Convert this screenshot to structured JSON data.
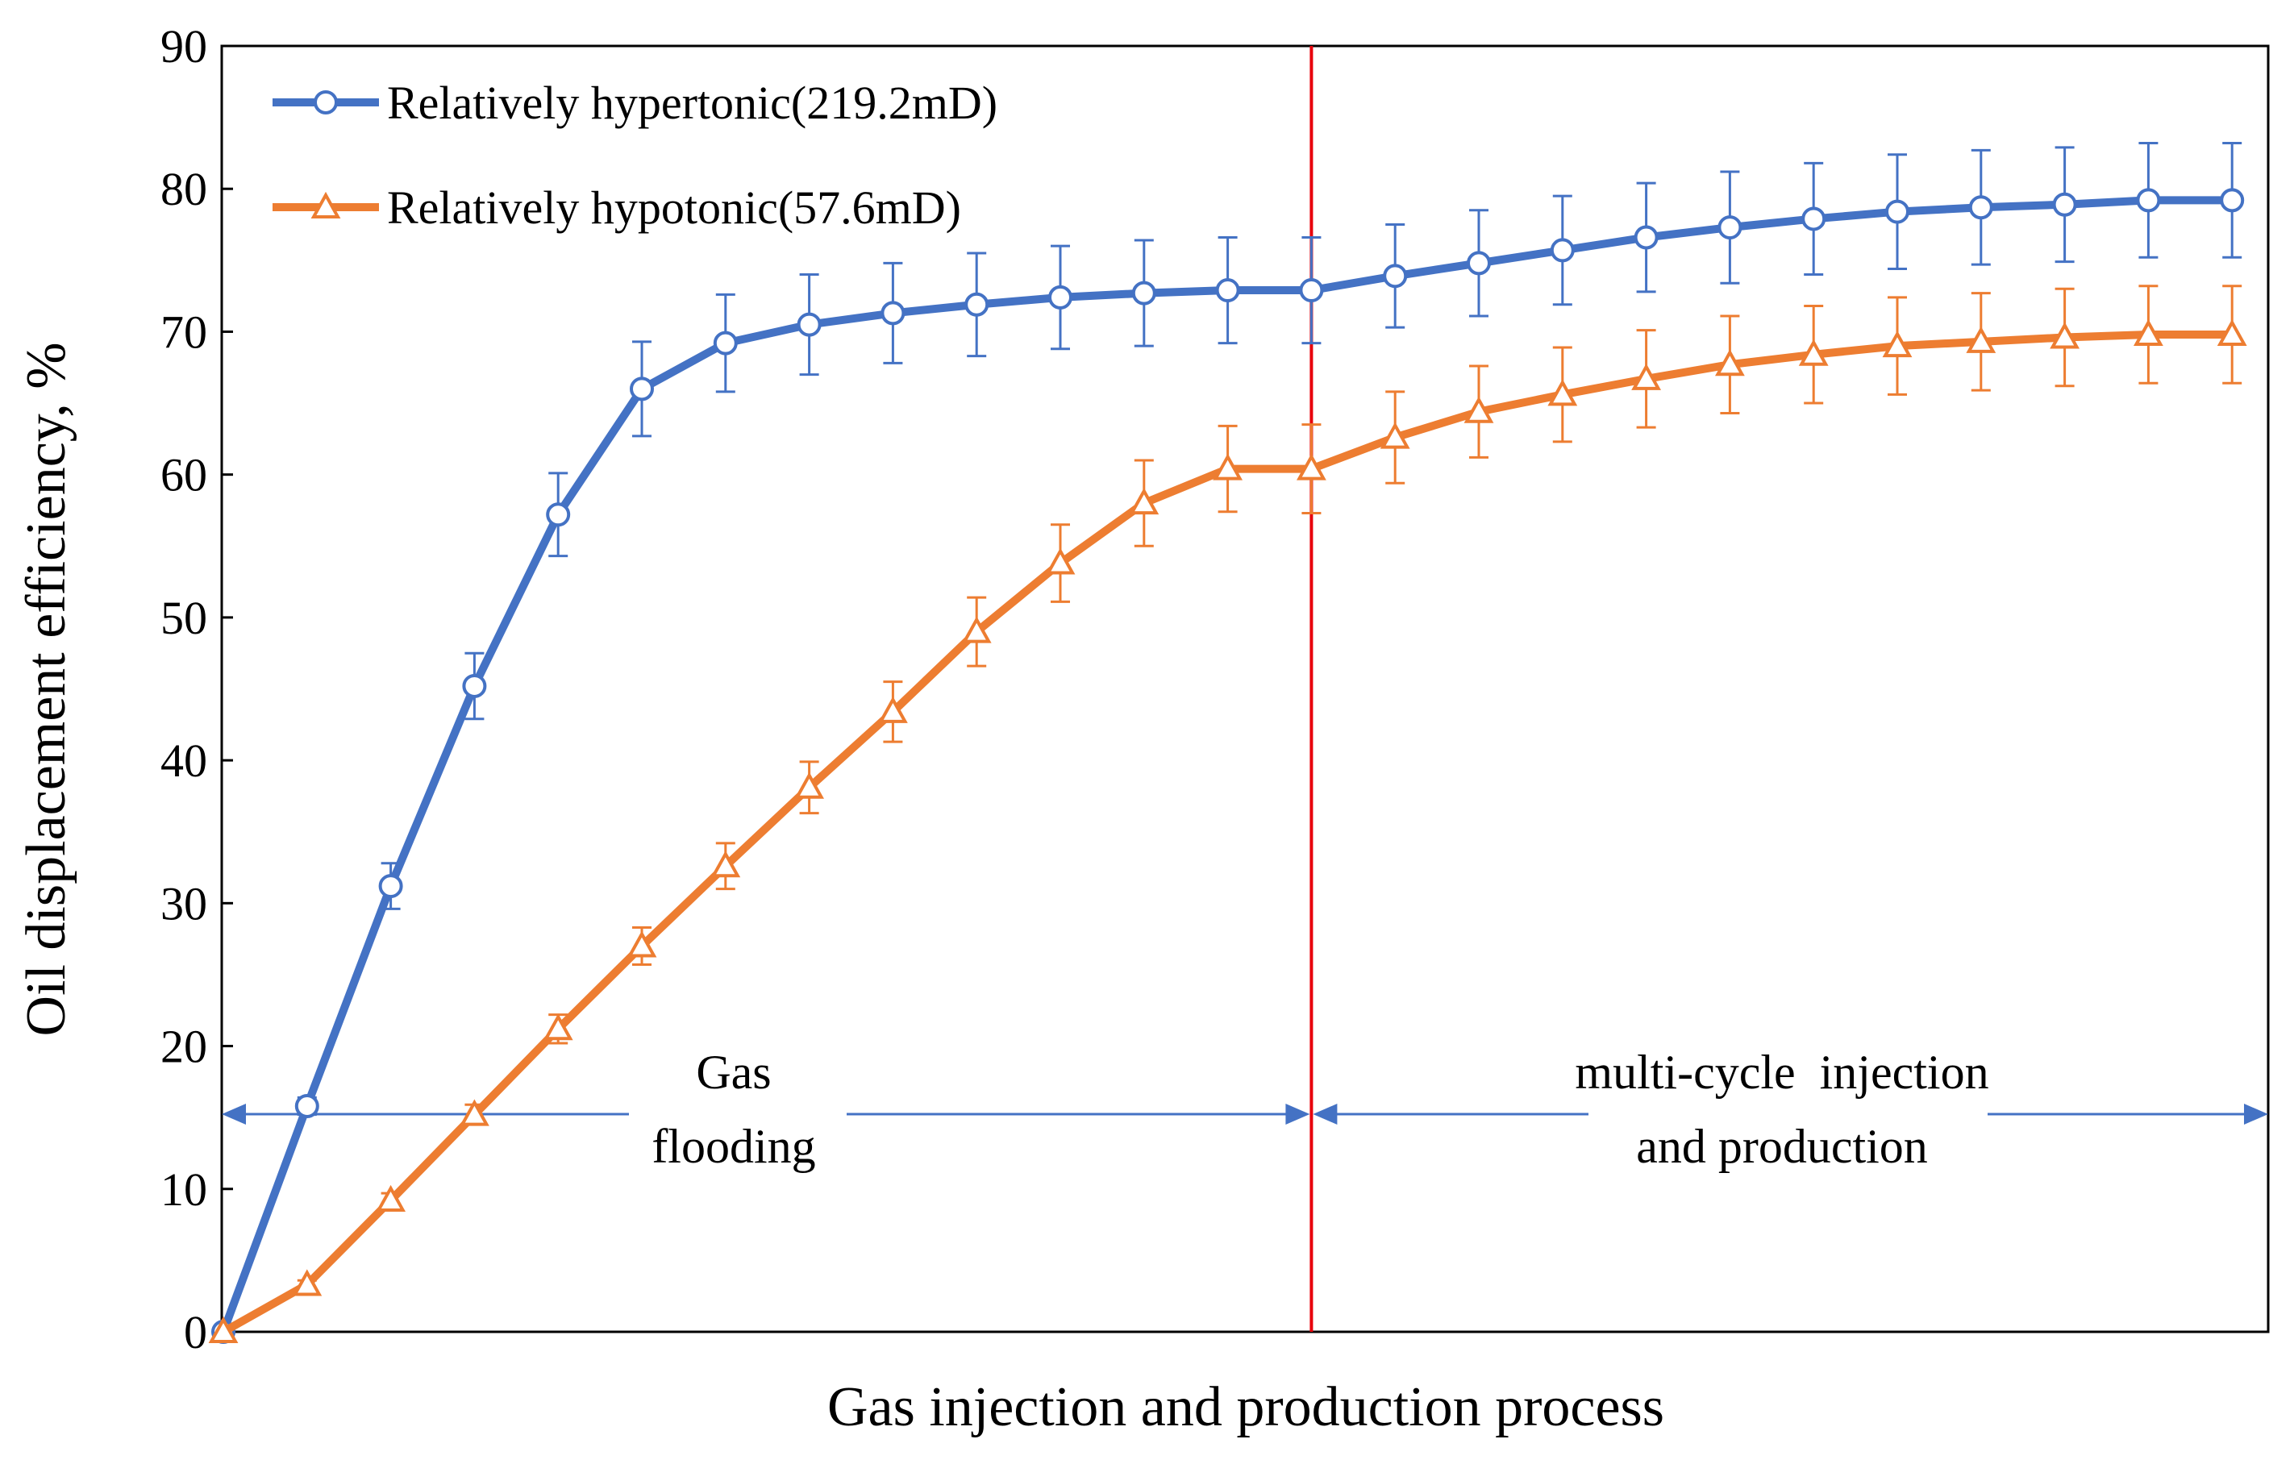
{
  "chart_data": {
    "type": "line",
    "xlabel": "Gas injection  and production process",
    "ylabel": "Oil displacement efficiency, %",
    "ylim": [
      0,
      90
    ],
    "yticks": [
      0,
      10,
      20,
      30,
      40,
      50,
      60,
      70,
      80,
      90
    ],
    "xlim": [
      0,
      24.5
    ],
    "grid": false,
    "legend_position": "top-left",
    "switch_index": 13,
    "switch_line_color": "#e8000b",
    "series": [
      {
        "name": "Relatively hypertonic(219.2mD)",
        "color": "#4472c4",
        "marker": "circle",
        "x": [
          0,
          1,
          2,
          3,
          4,
          5,
          6,
          7,
          8,
          9,
          10,
          11,
          12,
          13,
          14,
          15,
          16,
          17,
          18,
          19,
          20,
          21,
          22,
          23,
          24
        ],
        "values": [
          0,
          15.8,
          31.2,
          45.2,
          57.2,
          66,
          69.2,
          70.5,
          71.3,
          71.9,
          72.4,
          72.7,
          72.9,
          72.9,
          73.9,
          74.8,
          75.7,
          76.6,
          77.3,
          77.9,
          78.4,
          78.7,
          78.9,
          79.2,
          79.2
        ],
        "error": [
          0,
          0.6,
          1.6,
          2.3,
          2.9,
          3.3,
          3.4,
          3.5,
          3.5,
          3.6,
          3.6,
          3.7,
          3.7,
          3.7,
          3.6,
          3.7,
          3.8,
          3.8,
          3.9,
          3.9,
          4,
          4,
          4,
          4,
          4
        ]
      },
      {
        "name": "Relatively hypotonic(57.6mD)",
        "color": "#ed7d31",
        "marker": "triangle",
        "x": [
          0,
          1,
          2,
          3,
          4,
          5,
          6,
          7,
          8,
          9,
          10,
          11,
          12,
          13,
          14,
          15,
          16,
          17,
          18,
          19,
          20,
          21,
          22,
          23,
          24
        ],
        "values": [
          0,
          3.3,
          9.2,
          15.2,
          21.2,
          27,
          32.6,
          38.1,
          43.4,
          49,
          53.8,
          58,
          60.4,
          60.4,
          62.6,
          64.4,
          65.6,
          66.7,
          67.7,
          68.4,
          69,
          69.3,
          69.6,
          69.8,
          69.8
        ],
        "error": [
          0,
          0.3,
          0.5,
          0.7,
          1,
          1.3,
          1.6,
          1.8,
          2.1,
          2.4,
          2.7,
          3,
          3,
          3.1,
          3.2,
          3.2,
          3.3,
          3.4,
          3.4,
          3.4,
          3.4,
          3.4,
          3.4,
          3.4,
          3.4
        ]
      }
    ],
    "annotations": [
      {
        "lines": [
          "Gas",
          "flooding"
        ],
        "color": "#4472c4",
        "span": "left"
      },
      {
        "lines": [
          "multi-cycle  injection",
          "and production"
        ],
        "color": "#4472c4",
        "span": "right"
      }
    ]
  }
}
